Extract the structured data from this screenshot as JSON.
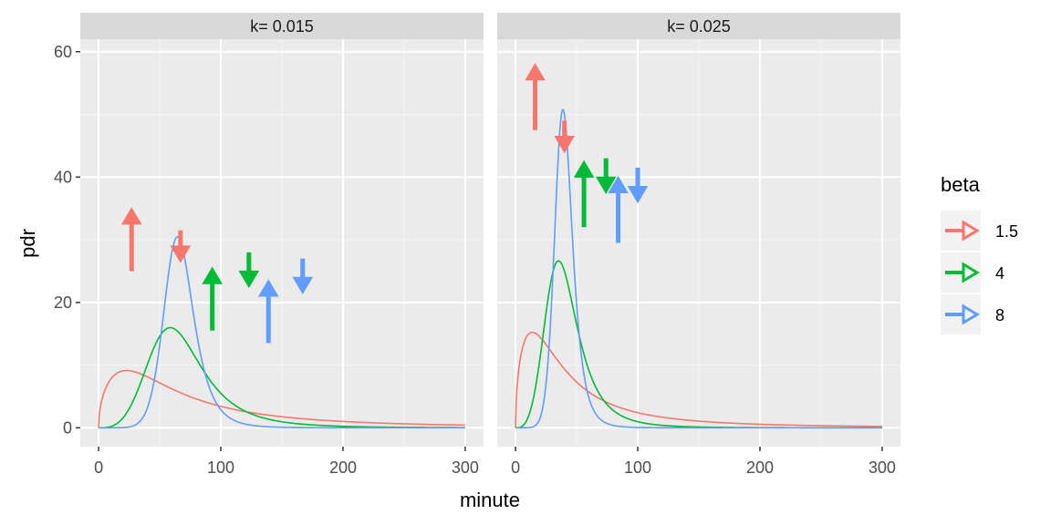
{
  "chart_data": {
    "type": "line",
    "xlabel": "minute",
    "ylabel": "pdr",
    "xlim": [
      -15,
      315
    ],
    "ylim": [
      -3,
      62
    ],
    "x_ticks": [
      0,
      100,
      200,
      300
    ],
    "y_ticks": [
      0,
      20,
      40,
      60
    ],
    "x_tick_labels": [
      "0",
      "100",
      "200",
      "300"
    ],
    "y_tick_labels": [
      "0",
      "20",
      "40",
      "60"
    ],
    "grid": true,
    "legend": {
      "title": "beta",
      "position": "right",
      "entries": [
        {
          "label": "1.5",
          "color": "#F8766D"
        },
        {
          "label": "4",
          "color": "#00BA38"
        },
        {
          "label": "8",
          "color": "#619CFF"
        }
      ]
    },
    "panels": [
      {
        "strip_label": "k= 0.015",
        "k": 0.015,
        "series": [
          {
            "name": "1.5",
            "beta": 1.5,
            "color": "#F8766D"
          },
          {
            "name": "4",
            "beta": 4,
            "color": "#00BA38"
          },
          {
            "name": "8",
            "beta": 8,
            "color": "#619CFF"
          }
        ],
        "arrows": [
          {
            "series": "1.5",
            "direction": "up",
            "x": 27,
            "y_from": 25,
            "y_to": 35
          },
          {
            "series": "1.5",
            "direction": "down",
            "x": 67,
            "y_from": 31.5,
            "y_to": 26.5
          },
          {
            "series": "4",
            "direction": "up",
            "x": 93,
            "y_from": 15.5,
            "y_to": 25.5
          },
          {
            "series": "4",
            "direction": "down",
            "x": 123,
            "y_from": 28,
            "y_to": 22.5
          },
          {
            "series": "8",
            "direction": "up",
            "x": 139,
            "y_from": 13.5,
            "y_to": 23.5
          },
          {
            "series": "8",
            "direction": "down",
            "x": 167,
            "y_from": 27,
            "y_to": 21.5
          }
        ]
      },
      {
        "strip_label": "k= 0.025",
        "k": 0.025,
        "series": [
          {
            "name": "1.5",
            "beta": 1.5,
            "color": "#F8766D"
          },
          {
            "name": "4",
            "beta": 4,
            "color": "#00BA38"
          },
          {
            "name": "8",
            "beta": 8,
            "color": "#619CFF"
          }
        ],
        "arrows": [
          {
            "series": "1.5",
            "direction": "up",
            "x": 16,
            "y_from": 47.5,
            "y_to": 58
          },
          {
            "series": "1.5",
            "direction": "down",
            "x": 40,
            "y_from": 49,
            "y_to": 44
          },
          {
            "series": "4",
            "direction": "up",
            "x": 56,
            "y_from": 32,
            "y_to": 42.5
          },
          {
            "series": "4",
            "direction": "down",
            "x": 74,
            "y_from": 43,
            "y_to": 37.5
          },
          {
            "series": "8",
            "direction": "up",
            "x": 84,
            "y_from": 29.5,
            "y_to": 40
          },
          {
            "series": "8",
            "direction": "down",
            "x": 100,
            "y_from": 41.5,
            "y_to": 36
          }
        ]
      }
    ]
  }
}
